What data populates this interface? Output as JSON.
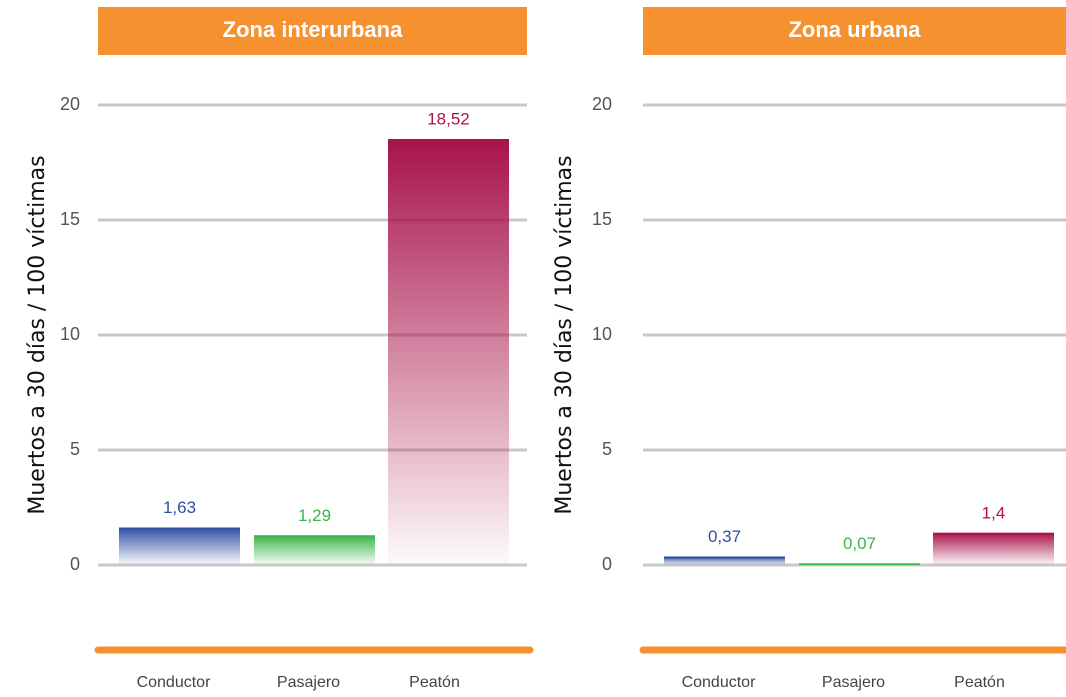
{
  "chart_data": [
    {
      "type": "bar",
      "title": "Zona interurbana",
      "y_label": "Muertos a 30 días / 100 víctimas",
      "categories": [
        "Conductor",
        "Pasajero",
        "Peatón"
      ],
      "values": [
        1.63,
        1.29,
        18.52
      ],
      "value_labels": [
        "1,63",
        "1,29",
        "18,52"
      ],
      "colors": [
        "#2e4fa3",
        "#3cb54a",
        "#a8134a"
      ],
      "ylim": [
        0,
        20
      ],
      "yticks": [
        0,
        5,
        10,
        15,
        20
      ],
      "grid": true
    },
    {
      "type": "bar",
      "title": "Zona urbana",
      "y_label": "Muertos a 30 días / 100 víctimas",
      "categories": [
        "Conductor",
        "Pasajero",
        "Peatón"
      ],
      "values": [
        0.37,
        0.07,
        1.4
      ],
      "value_labels": [
        "0,37",
        "0,07",
        "1,4"
      ],
      "colors": [
        "#2e4fa3",
        "#3cb54a",
        "#a8134a"
      ],
      "ylim": [
        0,
        20
      ],
      "yticks": [
        0,
        5,
        10,
        15,
        20
      ],
      "grid": true
    }
  ]
}
